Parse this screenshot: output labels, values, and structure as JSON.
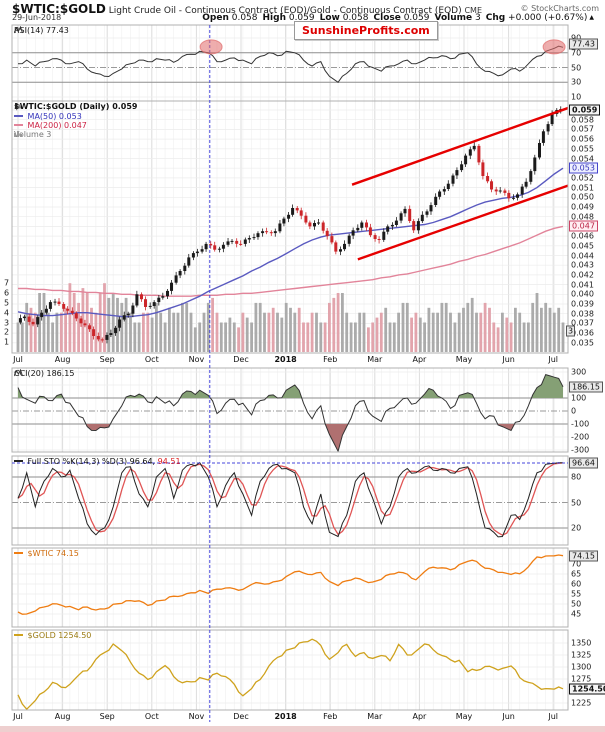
{
  "header": {
    "symbol": "$WTIC:$GOLD",
    "name": "Light Crude Oil - Continuous Contract (EOD)/Gold - Continuous Contract (EOD)",
    "exchange": "CME",
    "credit": "© StockCharts.com",
    "date": "29-Jun-2018",
    "quote": [
      {
        "label": "Open",
        "value": "0.058"
      },
      {
        "label": "High",
        "value": "0.059"
      },
      {
        "label": "Low",
        "value": "0.058"
      },
      {
        "label": "Close",
        "value": "0.059"
      },
      {
        "label": "Volume",
        "value": "3"
      },
      {
        "label": "Chg",
        "value": "+0.000 (+0.67%)"
      }
    ],
    "change_arrow": "▲",
    "watermark": "SunshineProfits.com"
  },
  "colors": {
    "up": "#1a1a1a",
    "down": "#cc2529",
    "ma50": "#5a5ac0",
    "ma200": "#e2849a",
    "channel": "#e60000",
    "volume_up": "#ababab",
    "volume_down": "#e2a4ac",
    "indicator_line": "#333333",
    "cci_pos_fill": "#85a075",
    "cci_neg_fill": "#b07070",
    "sto_k": "#222222",
    "sto_d": "#e05555",
    "wtic": "#ef7d12",
    "gold": "#cfa21d",
    "cursor": "#4646dc",
    "highlight": "#e06a6a",
    "watermark_text": "#dd0000"
  },
  "months": [
    {
      "label": "Jul"
    },
    {
      "label": "Aug"
    },
    {
      "label": "Sep"
    },
    {
      "label": "Oct"
    },
    {
      "label": "Nov"
    },
    {
      "label": "Dec"
    },
    {
      "label": "2018",
      "bold": true
    },
    {
      "label": "Feb"
    },
    {
      "label": "Mar"
    },
    {
      "label": "Apr"
    },
    {
      "label": "May"
    },
    {
      "label": "Jun"
    },
    {
      "label": "Jul"
    }
  ],
  "annotations": {
    "cursor_month": 4.3,
    "sto_signal_level": 96.5,
    "rsi_highlights": [
      {
        "month": 4.33,
        "value": 78
      },
      {
        "month": 12.02,
        "value": 78
      }
    ]
  },
  "chart_data": [
    {
      "id": "rsi",
      "type": "line",
      "legend": "RSI(14) 77.43",
      "value": "77.43",
      "ylim": [
        0,
        100
      ],
      "yticks": [
        90,
        70,
        50,
        30,
        10
      ],
      "overbought": 70,
      "midline": 50,
      "oversold": 30,
      "values": [
        55,
        60,
        52,
        58,
        62,
        60,
        55,
        58,
        48,
        42,
        38,
        42,
        48,
        55,
        60,
        58,
        62,
        60,
        57,
        65,
        68,
        72,
        70,
        58,
        60,
        63,
        60,
        55,
        65,
        70,
        66,
        72,
        70,
        60,
        52,
        58,
        38,
        30,
        42,
        55,
        58,
        50,
        45,
        52,
        55,
        60,
        55,
        60,
        63,
        66,
        62,
        68,
        70,
        55,
        45,
        42,
        40,
        48,
        45,
        55,
        65,
        72,
        76,
        77.4
      ]
    },
    {
      "id": "ratio",
      "type": "candlestick",
      "legend": "$WTIC:$GOLD (Daily) 0.059",
      "value": "0.059",
      "ylim": [
        0.035,
        0.059
      ],
      "yticks": [
        0.058,
        0.057,
        0.056,
        0.055,
        0.054,
        0.052,
        0.051,
        0.05,
        0.049,
        0.048,
        0.046,
        0.045,
        0.044,
        0.043,
        0.042,
        0.041,
        0.04,
        0.039,
        0.038,
        0.037,
        0.036,
        0.035
      ],
      "closes": [
        0.0371,
        0.0377,
        0.0369,
        0.0381,
        0.0392,
        0.039,
        0.0383,
        0.0375,
        0.0368,
        0.0357,
        0.0353,
        0.036,
        0.0374,
        0.038,
        0.04,
        0.0387,
        0.0392,
        0.0398,
        0.0412,
        0.0424,
        0.0438,
        0.0444,
        0.0452,
        0.0446,
        0.0451,
        0.0455,
        0.0452,
        0.0458,
        0.0463,
        0.0464,
        0.0465,
        0.0478,
        0.0489,
        0.0481,
        0.047,
        0.0474,
        0.046,
        0.0444,
        0.0452,
        0.0466,
        0.0474,
        0.0461,
        0.0456,
        0.047,
        0.0476,
        0.0488,
        0.0466,
        0.0482,
        0.0492,
        0.0506,
        0.0514,
        0.0528,
        0.0543,
        0.0553,
        0.0522,
        0.0508,
        0.0507,
        0.0499,
        0.0503,
        0.0516,
        0.0541,
        0.0568,
        0.0586,
        0.0591
      ],
      "ma50": {
        "legend": "MA(50) 0.053",
        "value": "0.053",
        "values": [
          0.0382,
          0.038,
          0.0379,
          0.0378,
          0.0378,
          0.0379,
          0.038,
          0.0381,
          0.0381,
          0.038,
          0.0379,
          0.0378,
          0.0377,
          0.0377,
          0.0378,
          0.0379,
          0.0381,
          0.0384,
          0.0387,
          0.039,
          0.0394,
          0.0398,
          0.0403,
          0.0407,
          0.0411,
          0.0415,
          0.0419,
          0.0424,
          0.0428,
          0.0433,
          0.0437,
          0.0442,
          0.0447,
          0.0452,
          0.0456,
          0.0459,
          0.0461,
          0.0462,
          0.0463,
          0.0464,
          0.0465,
          0.0466,
          0.0467,
          0.0468,
          0.0469,
          0.047,
          0.0471,
          0.0472,
          0.0474,
          0.0477,
          0.048,
          0.0484,
          0.0488,
          0.0492,
          0.0495,
          0.0497,
          0.0499,
          0.05,
          0.0502,
          0.0505,
          0.051,
          0.0517,
          0.0524,
          0.053
        ]
      },
      "ma200": {
        "legend": "MA(200) 0.047",
        "value": "0.047",
        "values": [
          0.0406,
          0.0406,
          0.0405,
          0.0405,
          0.0404,
          0.0404,
          0.0403,
          0.0403,
          0.0402,
          0.0402,
          0.0401,
          0.0401,
          0.04,
          0.04,
          0.0399,
          0.0399,
          0.0399,
          0.0398,
          0.0398,
          0.0398,
          0.0398,
          0.0399,
          0.0399,
          0.0399,
          0.04,
          0.04,
          0.0401,
          0.0401,
          0.0402,
          0.0403,
          0.0404,
          0.0405,
          0.0406,
          0.0407,
          0.0408,
          0.0409,
          0.041,
          0.0411,
          0.0412,
          0.0413,
          0.0414,
          0.0415,
          0.0417,
          0.0418,
          0.042,
          0.0421,
          0.0423,
          0.0425,
          0.0427,
          0.0429,
          0.0431,
          0.0434,
          0.0436,
          0.0439,
          0.0441,
          0.0444,
          0.0447,
          0.045,
          0.0453,
          0.0457,
          0.0461,
          0.0465,
          0.0468,
          0.047
        ]
      },
      "volume": {
        "legend": "Volume 3",
        "value": "3",
        "yticks": [
          7,
          6,
          5,
          4,
          3,
          2,
          1
        ],
        "values": [
          3,
          5,
          4,
          6,
          3,
          4,
          7,
          5,
          6,
          4,
          7,
          6,
          5,
          4,
          3,
          4,
          5,
          3,
          4,
          5,
          4,
          3,
          5,
          4,
          3,
          3,
          4,
          3,
          5,
          4,
          4,
          5,
          4,
          3,
          4,
          3,
          5,
          6,
          4,
          3,
          4,
          3,
          4,
          3,
          4,
          5,
          4,
          3,
          4,
          5,
          4,
          4,
          5,
          4,
          5,
          3,
          4,
          3,
          4,
          3,
          6,
          5,
          4,
          3
        ]
      },
      "channel": {
        "upper": {
          "m1": 7.49,
          "v1": 0.0513,
          "m2": 12.33,
          "v2": 0.0592
        },
        "lower": {
          "m1": 7.62,
          "v1": 0.0436,
          "m2": 12.33,
          "v2": 0.0512
        }
      }
    },
    {
      "id": "cci",
      "type": "line",
      "legend": "CCI(20) 186.15",
      "value": "186.15",
      "ylim": [
        -300,
        300
      ],
      "yticks": [
        300,
        100,
        0,
        -100,
        -200,
        -300
      ],
      "upper": 100,
      "lower": -100,
      "values": [
        180,
        90,
        60,
        110,
        80,
        130,
        60,
        -40,
        -120,
        -150,
        -130,
        -60,
        40,
        120,
        130,
        70,
        110,
        60,
        40,
        130,
        150,
        160,
        120,
        -20,
        60,
        90,
        60,
        -30,
        80,
        120,
        100,
        160,
        200,
        60,
        -60,
        40,
        -180,
        -310,
        -120,
        40,
        80,
        -40,
        -80,
        20,
        60,
        100,
        60,
        130,
        160,
        100,
        20,
        120,
        140,
        60,
        -60,
        -40,
        -120,
        -150,
        -80,
        40,
        180,
        280,
        260,
        186
      ]
    },
    {
      "id": "sto",
      "type": "line2",
      "legend_k": "Full STO %K(14,3) %D(3) 96.64,",
      "legend_d": "94.51",
      "value": "96.64",
      "value_d": "94.51",
      "ylim": [
        0,
        100
      ],
      "yticks": [
        80,
        50,
        20
      ],
      "overbought": 80,
      "midline": 50,
      "oversold": 20,
      "values_k": [
        55,
        85,
        45,
        75,
        90,
        80,
        88,
        55,
        25,
        12,
        20,
        45,
        85,
        92,
        60,
        45,
        80,
        90,
        55,
        88,
        95,
        97,
        80,
        45,
        70,
        85,
        60,
        35,
        75,
        90,
        95,
        90,
        85,
        45,
        25,
        60,
        15,
        10,
        35,
        75,
        85,
        55,
        25,
        45,
        80,
        90,
        85,
        92,
        88,
        90,
        85,
        90,
        92,
        60,
        20,
        15,
        10,
        35,
        30,
        55,
        85,
        95,
        96,
        96.6
      ]
    },
    {
      "id": "wtic",
      "type": "line",
      "legend": "$WTIC 74.15",
      "value": "74.15",
      "ylim": [
        44,
        75
      ],
      "yticks": [
        70,
        65,
        60,
        55,
        50,
        45
      ],
      "values": [
        46.0,
        45.0,
        46.5,
        48.5,
        50.1,
        49.4,
        48.8,
        47.1,
        48.5,
        47.0,
        47.5,
        49.9,
        50.3,
        51.7,
        51.6,
        49.3,
        51.5,
        52.0,
        53.9,
        54.2,
        55.6,
        56.8,
        55.3,
        57.4,
        58.0,
        57.6,
        57.3,
        59.8,
        60.4,
        60.1,
        61.4,
        63.7,
        66.1,
        65.5,
        64.7,
        65.8,
        61.3,
        59.2,
        61.6,
        63.0,
        61.6,
        61.0,
        62.3,
        64.9,
        65.9,
        64.9,
        62.1,
        66.2,
        68.4,
        68.1,
        67.1,
        69.7,
        71.3,
        71.3,
        67.9,
        67.0,
        65.8,
        64.8,
        65.1,
        68.6,
        73.5,
        74.0,
        74.1,
        74.15
      ]
    },
    {
      "id": "gold",
      "type": "line",
      "legend": "$GOLD 1254.50",
      "value": "1254.50",
      "ylim": [
        1210,
        1365
      ],
      "yticks": [
        1350,
        1325,
        1300,
        1275,
        1225
      ],
      "values": [
        1242,
        1212,
        1230,
        1248,
        1268,
        1258,
        1264,
        1283,
        1292,
        1316,
        1330,
        1348,
        1334,
        1310,
        1287,
        1274,
        1290,
        1303,
        1280,
        1267,
        1269,
        1278,
        1273,
        1287,
        1280,
        1264,
        1240,
        1255,
        1274,
        1302,
        1320,
        1335,
        1340,
        1352,
        1358,
        1345,
        1316,
        1330,
        1347,
        1322,
        1330,
        1318,
        1324,
        1313,
        1347,
        1325,
        1333,
        1348,
        1336,
        1324,
        1315,
        1314,
        1290,
        1293,
        1301,
        1298,
        1297,
        1302,
        1278,
        1268,
        1260,
        1255,
        1254,
        1254.5
      ]
    }
  ]
}
